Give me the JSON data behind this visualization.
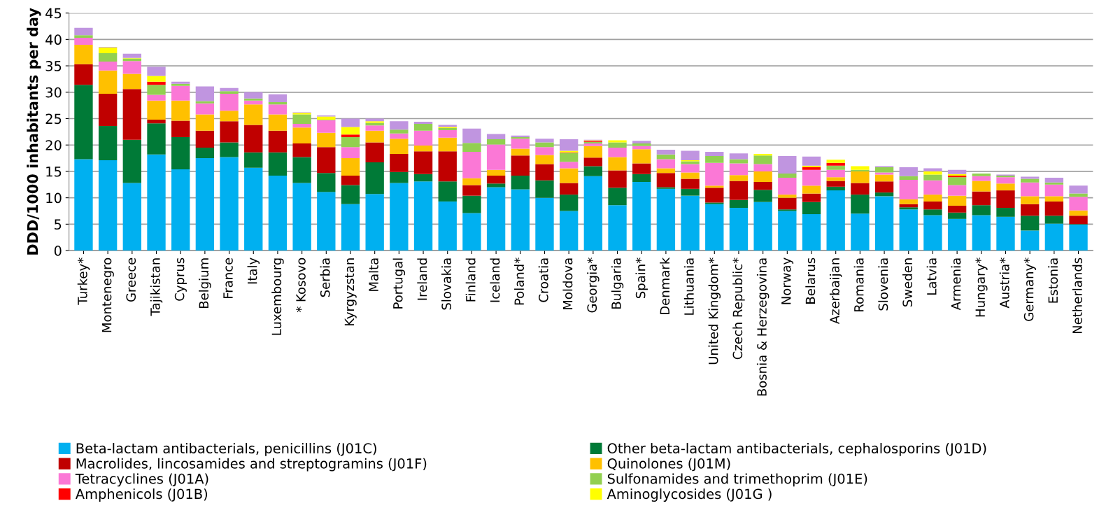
{
  "chart_data": {
    "type": "bar",
    "stacked": true,
    "ylabel": "DDD/1000 inhabitants per day",
    "categories": [
      "Turkey*",
      "Montenegro",
      "Greece",
      "Tajikistan",
      "Cyprus",
      "Belgium",
      "France",
      "Italy",
      "Luxembourg",
      "* Kosovo",
      "Serbia",
      "Kyrgyzstan",
      "Malta",
      "Portugal",
      "Ireland",
      "Slovakia",
      "Finland",
      "Iceland",
      "Poland*",
      "Croatia",
      "Moldova",
      "Georgia*",
      "Bulgaria",
      "Spain*",
      "Denmark",
      "Lithuania",
      "United Kingdom*",
      "Czech Republic*",
      "Bosnia & Herzegovina",
      "Norway",
      "Belarus",
      "Azerbaijan",
      "Romania",
      "Slovenia",
      "Sweden",
      "Latvia",
      "Armenia",
      "Hungary*",
      "Austria*",
      "Germany*",
      "Estonia",
      "Netherlands"
    ],
    "series": [
      {
        "name": "Beta-lactam antibacterials, penicillins (J01C)",
        "color": "#00b0f0",
        "values": [
          17.3,
          17.1,
          12.8,
          18.2,
          15.4,
          17.5,
          17.7,
          15.7,
          14.2,
          12.8,
          11.1,
          8.8,
          10.7,
          12.8,
          13.1,
          9.3,
          7.1,
          12.0,
          11.6,
          10.0,
          7.5,
          14.1,
          8.6,
          13.0,
          11.7,
          10.4,
          8.8,
          8.1,
          9.2,
          7.5,
          6.9,
          11.4,
          7.0,
          10.3,
          7.8,
          6.7,
          6.0,
          6.7,
          6.4,
          3.8,
          5.1,
          4.9
        ]
      },
      {
        "name": "Other beta-lactam antibacterials, cephalosporins (J01D)",
        "color": "#007a37",
        "values": [
          14.1,
          6.5,
          8.2,
          5.9,
          6.1,
          2.0,
          2.8,
          2.9,
          4.4,
          4.9,
          3.6,
          3.6,
          6.0,
          2.1,
          1.4,
          3.8,
          3.3,
          0.7,
          2.6,
          3.3,
          3.1,
          1.9,
          3.3,
          1.5,
          0.3,
          1.3,
          0.3,
          1.5,
          2.3,
          0.3,
          2.3,
          0.7,
          3.6,
          0.7,
          0.4,
          1.1,
          1.2,
          1.9,
          1.7,
          2.8,
          1.5,
          0.1
        ]
      },
      {
        "name": "Macrolides, lincosamides and streptogramins (J01F)",
        "color": "#c00000",
        "values": [
          3.9,
          6.1,
          9.6,
          0.7,
          3.1,
          3.2,
          4.0,
          5.2,
          4.1,
          2.6,
          4.9,
          1.8,
          3.8,
          3.4,
          4.3,
          5.7,
          2.0,
          1.5,
          3.8,
          3.1,
          2.2,
          1.6,
          3.3,
          2.0,
          2.7,
          1.9,
          2.8,
          3.6,
          1.5,
          2.2,
          1.6,
          1.1,
          2.2,
          2.1,
          0.6,
          1.5,
          1.3,
          2.6,
          3.3,
          2.2,
          2.7,
          1.6
        ]
      },
      {
        "name": "Quinolones (J01M)",
        "color": "#ffc000",
        "values": [
          3.7,
          4.4,
          2.9,
          3.6,
          3.8,
          3.1,
          2.0,
          3.9,
          3.1,
          3.0,
          2.7,
          3.3,
          2.2,
          2.9,
          1.1,
          2.6,
          1.3,
          1.1,
          1.3,
          1.7,
          2.8,
          2.2,
          2.5,
          2.7,
          0.9,
          1.2,
          0.4,
          1.1,
          2.0,
          0.6,
          1.5,
          0.7,
          2.2,
          1.3,
          0.9,
          1.3,
          1.9,
          2.0,
          1.3,
          1.5,
          1.0,
          1.0
        ]
      },
      {
        "name": "Tetracyclines (J01A)",
        "color": "#fb78d6",
        "values": [
          1.3,
          1.7,
          2.4,
          1.1,
          2.8,
          2.1,
          3.2,
          0.7,
          1.9,
          0.7,
          2.4,
          2.1,
          1.0,
          1.0,
          2.8,
          1.4,
          5.0,
          4.8,
          1.9,
          1.5,
          1.2,
          0.5,
          1.8,
          0.6,
          1.7,
          1.6,
          4.3,
          2.2,
          1.4,
          3.2,
          3.0,
          1.4,
          0,
          0.4,
          3.7,
          2.7,
          2.0,
          0.9,
          1.2,
          2.6,
          2.2,
          2.6
        ]
      },
      {
        "name": "Sulfonamides and trimethoprim (J01E)",
        "color": "#92d050",
        "values": [
          0.5,
          1.6,
          0.5,
          1.9,
          0.4,
          0.4,
          0.5,
          0.4,
          0.4,
          1.8,
          0.1,
          1.9,
          0.5,
          0.7,
          1.3,
          0.4,
          1.7,
          1.0,
          0.3,
          0.9,
          1.7,
          0.3,
          1.0,
          0.5,
          0.9,
          0.5,
          1.3,
          0.8,
          1.6,
          0.8,
          0,
          0.8,
          0.3,
          1.0,
          0.7,
          1.1,
          1.5,
          0.5,
          0.3,
          0.7,
          0.4,
          0.6
        ]
      },
      {
        "name": "Amphenicols (J01B)",
        "color": "#ff0000",
        "values": [
          0,
          0,
          0,
          0.6,
          0,
          0,
          0,
          0,
          0,
          0,
          0,
          0.5,
          0,
          0,
          0,
          0,
          0,
          0,
          0,
          0,
          0.1,
          0.2,
          0,
          0,
          0,
          0,
          0,
          0,
          0,
          0,
          0.5,
          0.5,
          0,
          0,
          0,
          0,
          0.3,
          0,
          0,
          0,
          0,
          0
        ]
      },
      {
        "name": "Aminoglycosides (J01G )",
        "color": "#ffff00",
        "values": [
          null,
          1.1,
          0.1,
          1.1,
          0,
          0,
          0,
          0,
          0,
          0.3,
          0.6,
          1.4,
          0.3,
          0,
          0,
          0.2,
          0,
          0,
          0,
          null,
          0.3,
          0.1,
          0.4,
          0,
          0,
          0.2,
          0,
          0,
          0.3,
          0,
          0.3,
          0.6,
          0.7,
          0,
          0,
          0.6,
          0.3,
          0,
          0,
          0,
          0,
          0
        ]
      },
      {
        "color": "#c095e0",
        "values": [
          1.4,
          0.1,
          0.8,
          1.7,
          0.4,
          2.8,
          0.6,
          1.2,
          1.5,
          0.1,
          0.2,
          1.6,
          0.5,
          1.6,
          0.4,
          0.4,
          2.7,
          1.0,
          0.3,
          0.7,
          2.2,
          0.1,
          0,
          0.5,
          0.9,
          1.8,
          0.8,
          1.1,
          0,
          3.3,
          1.7,
          0,
          null,
          0.2,
          1.7,
          0.6,
          0.8,
          0,
          0.2,
          0.4,
          0.9,
          1.5
        ]
      }
    ],
    "ylim": [
      0,
      45
    ],
    "yticks": [
      0,
      5,
      10,
      15,
      20,
      25,
      30,
      35,
      40,
      45
    ],
    "grid": "y",
    "legend": "bottom"
  }
}
